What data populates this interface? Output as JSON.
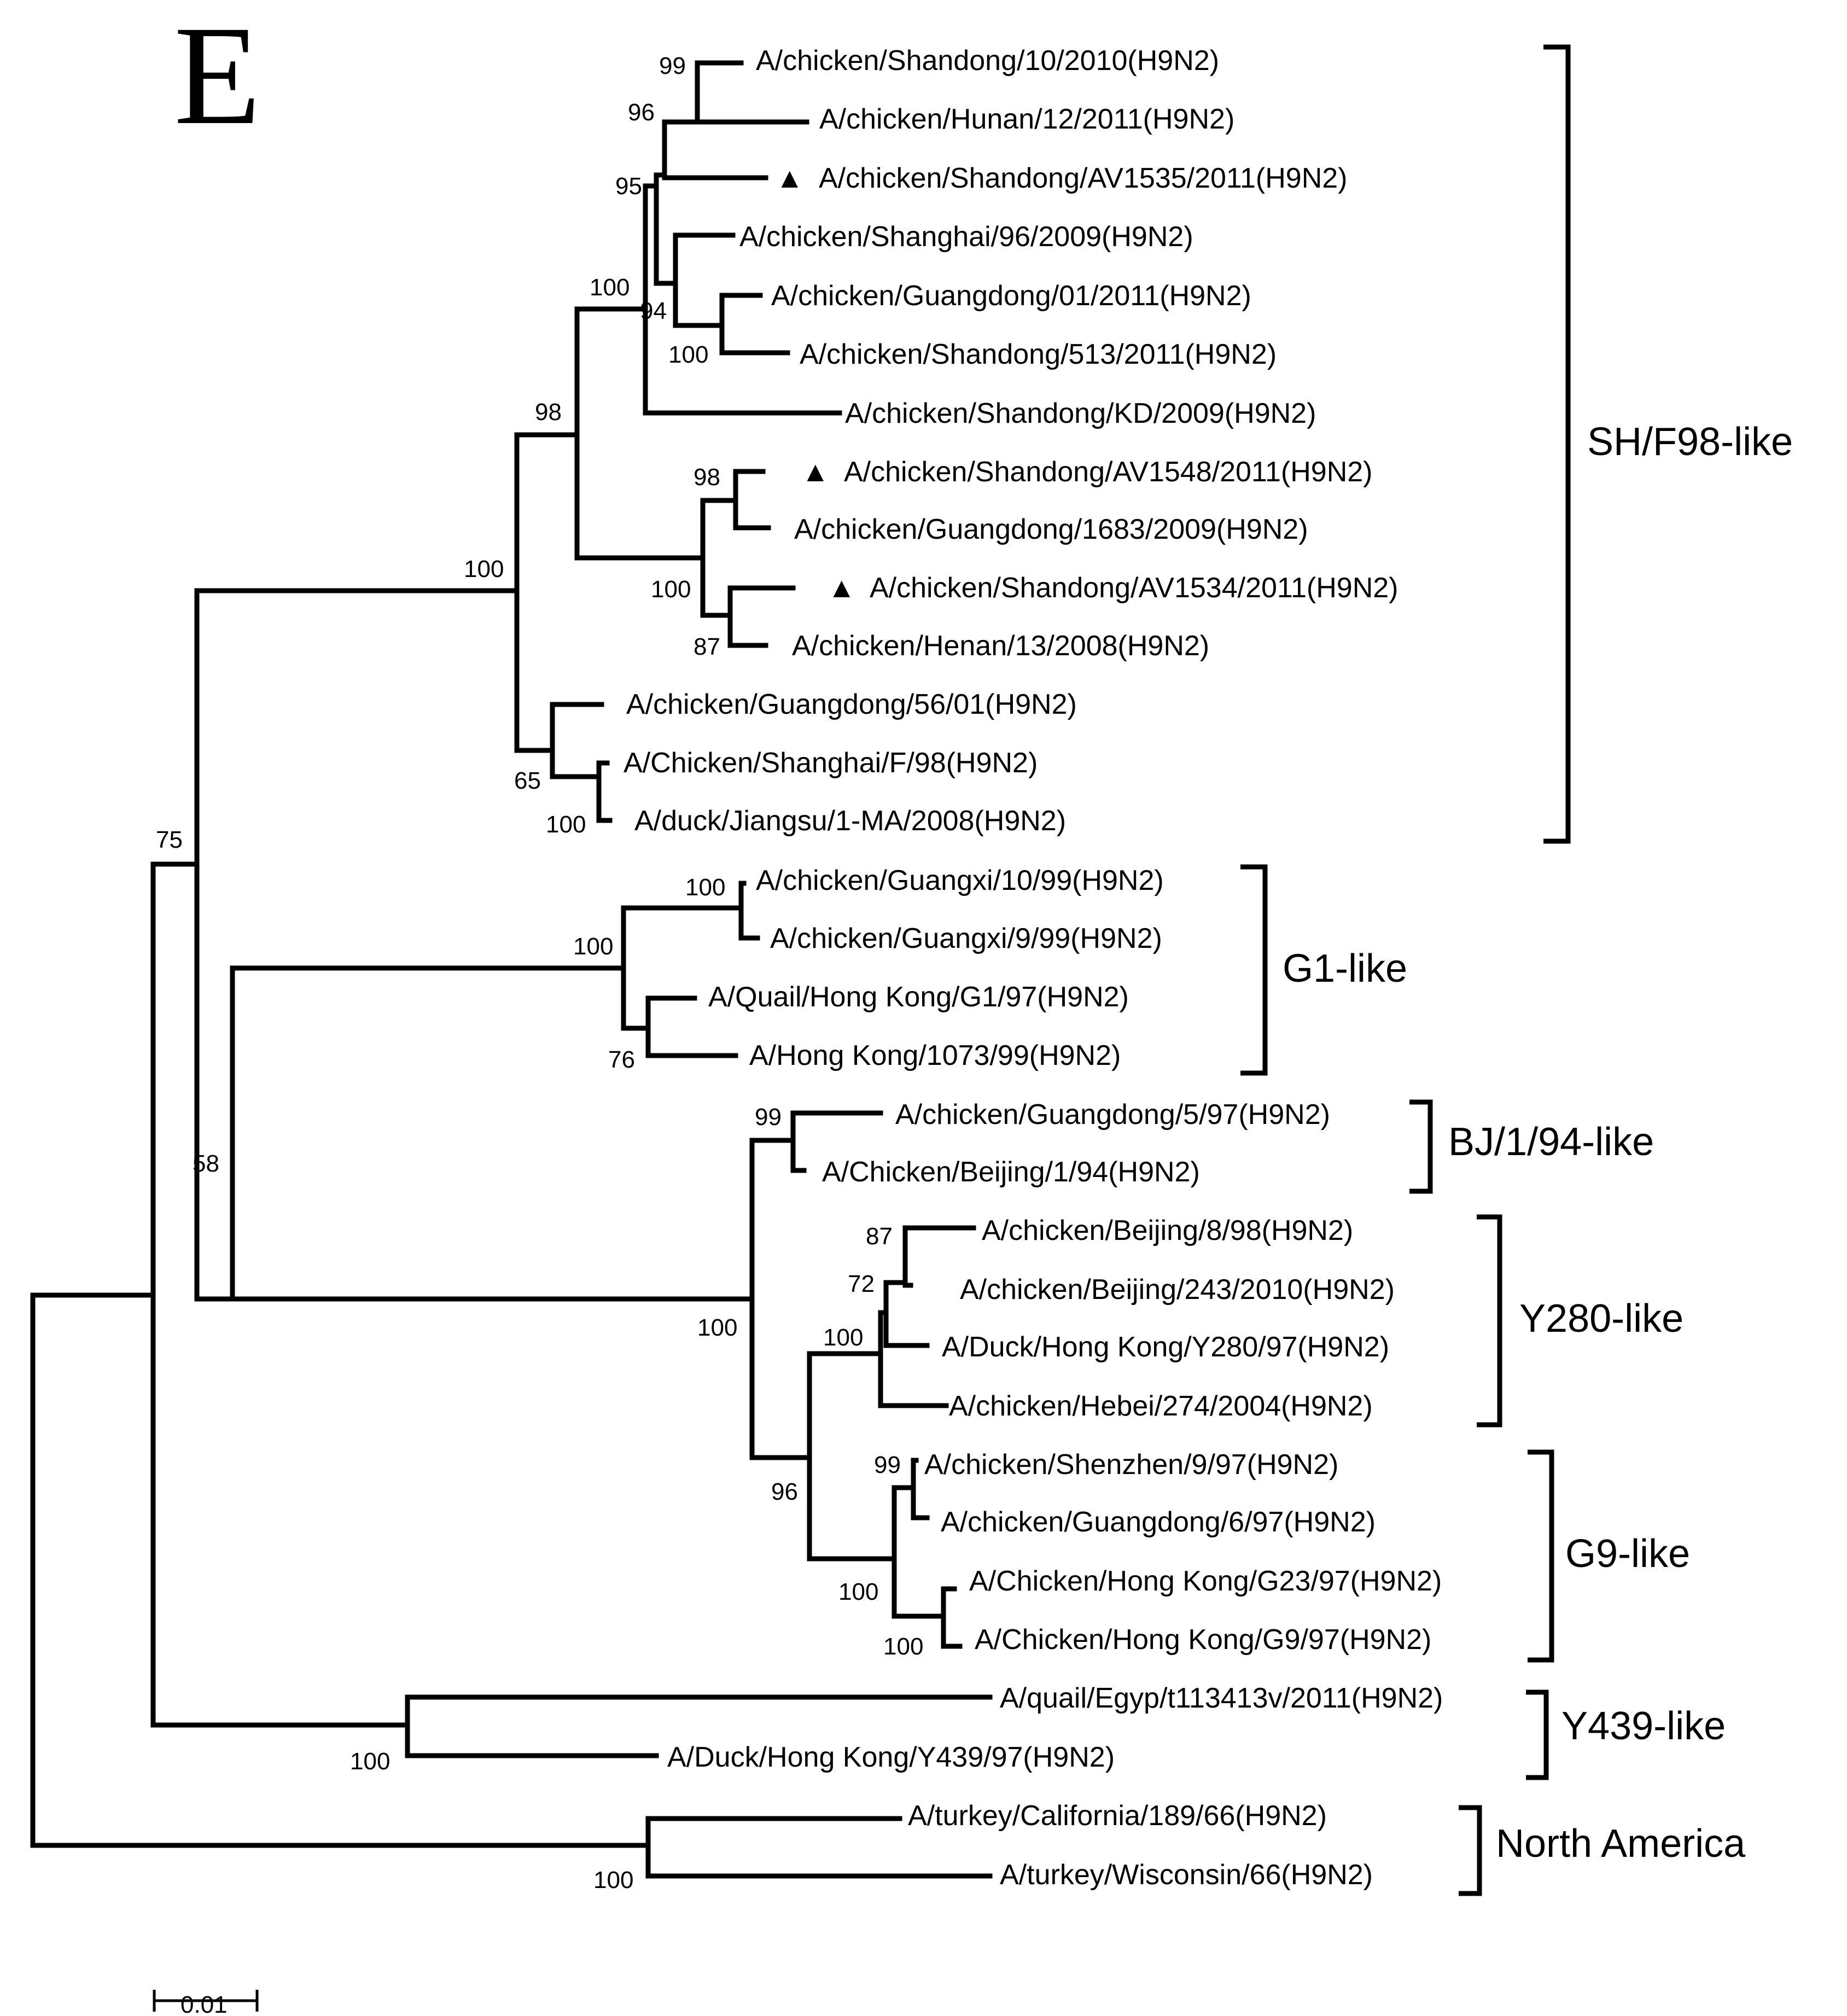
{
  "panel_label": "E",
  "scale_bar_label": "0.01",
  "marker_glyph": "▲",
  "taxa": [
    "A/chicken/Shandong/10/2010(H9N2)",
    "A/chicken/Hunan/12/2011(H9N2)",
    "A/chicken/Shandong/AV1535/2011(H9N2)",
    "A/chicken/Shanghai/96/2009(H9N2)",
    "A/chicken/Guangdong/01/2011(H9N2)",
    "A/chicken/Shandong/513/2011(H9N2)",
    "A/chicken/Shandong/KD/2009(H9N2)",
    "A/chicken/Shandong/AV1548/2011(H9N2)",
    "A/chicken/Guangdong/1683/2009(H9N2)",
    "A/chicken/Shandong/AV1534/2011(H9N2)",
    "A/chicken/Henan/13/2008(H9N2)",
    "A/chicken/Guangdong/56/01(H9N2)",
    "A/Chicken/Shanghai/F/98(H9N2)",
    "A/duck/Jiangsu/1-MA/2008(H9N2)",
    "A/chicken/Guangxi/10/99(H9N2)",
    "A/chicken/Guangxi/9/99(H9N2)",
    "A/Quail/Hong Kong/G1/97(H9N2)",
    "A/Hong Kong/1073/99(H9N2)",
    "A/chicken/Guangdong/5/97(H9N2)",
    "A/Chicken/Beijing/1/94(H9N2)",
    "A/chicken/Beijing/8/98(H9N2)",
    "A/chicken/Beijing/243/2010(H9N2)",
    "A/Duck/Hong Kong/Y280/97(H9N2)",
    "A/chicken/Hebei/274/2004(H9N2)",
    "A/chicken/Shenzhen/9/97(H9N2)",
    "A/chicken/Guangdong/6/97(H9N2)",
    "A/Chicken/Hong Kong/G23/97(H9N2)",
    "A/Chicken/Hong Kong/G9/97(H9N2)",
    "A/quail/Egyp/t113413v/2011(H9N2)",
    "A/Duck/Hong Kong/Y439/97(H9N2)",
    "A/turkey/California/189/66(H9N2)",
    "A/turkey/Wisconsin/66(H9N2)"
  ],
  "marked_taxa": [
    2,
    7,
    9
  ],
  "bootstrap": [
    "99",
    "96",
    "95",
    "100",
    "94",
    "100",
    "98",
    "98",
    "100",
    "87",
    "100",
    "65",
    "100",
    "100",
    "100",
    "76",
    "75",
    "58",
    "99",
    "87",
    "72",
    "100",
    "99",
    "100",
    "100",
    "96",
    "100",
    "100",
    "100"
  ],
  "clades": [
    "SH/F98-like",
    "G1-like",
    "BJ/1/94-like",
    "Y280-like",
    "G9-like",
    "Y439-like",
    "North America"
  ]
}
